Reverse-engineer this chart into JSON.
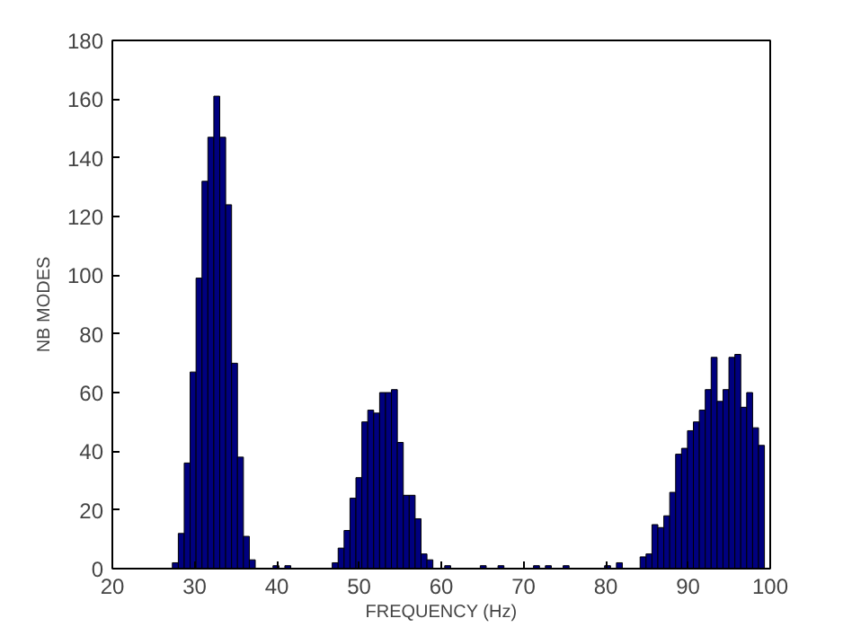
{
  "chart_data": {
    "type": "histogram",
    "xlabel": "FREQUENCY (Hz)",
    "ylabel": "NB MODES",
    "color": "#00007f",
    "bins": [
      27.3,
      28.02,
      28.74,
      29.46,
      30.18,
      30.9,
      31.62,
      32.34,
      33.06,
      33.78,
      34.5,
      35.22,
      35.94,
      36.66,
      37.38,
      38.1,
      38.82,
      39.54,
      40.26,
      40.98,
      41.7,
      42.42,
      43.14,
      43.86,
      44.58,
      45.3,
      46.02,
      46.74,
      47.46,
      48.18,
      48.9,
      49.62,
      50.34,
      51.06,
      51.78,
      52.5,
      53.22,
      53.94,
      54.66,
      55.38,
      56.1,
      56.82,
      57.54,
      58.26,
      58.98,
      59.7,
      60.42,
      61.14,
      61.86,
      62.58,
      63.3,
      64.02,
      64.74,
      65.46,
      66.18,
      66.9,
      67.62,
      68.34,
      69.06,
      69.78,
      70.5,
      71.22,
      71.94,
      72.66,
      73.38,
      74.1,
      74.82,
      75.54,
      76.26,
      76.98,
      77.7,
      78.42,
      79.14,
      79.86,
      80.58,
      81.3,
      82.02,
      82.74,
      83.46,
      84.18,
      84.9,
      85.62,
      86.34,
      87.06,
      87.78,
      88.5,
      89.22,
      89.94,
      90.66,
      91.38,
      92.1,
      92.82,
      93.54,
      94.26,
      94.98,
      95.7,
      96.42,
      97.14,
      97.86,
      98.58,
      99.3
    ],
    "values": [
      2,
      12,
      36,
      67,
      99,
      132,
      147,
      161,
      147,
      124,
      70,
      38,
      11,
      3,
      0,
      0,
      0,
      1,
      0,
      1,
      0,
      0,
      0,
      0,
      0,
      0,
      0,
      2,
      7,
      13,
      24,
      31,
      50,
      54,
      53,
      60,
      60,
      61,
      43,
      25,
      25,
      17,
      5,
      3,
      0,
      0,
      1,
      0,
      0,
      0,
      0,
      0,
      1,
      0,
      0,
      1,
      0,
      0,
      0,
      0,
      0,
      1,
      0,
      1,
      0,
      0,
      1,
      0,
      0,
      0,
      0,
      0,
      0,
      1,
      0,
      2,
      0,
      0,
      0,
      4,
      5,
      15,
      14,
      18,
      26,
      39,
      41,
      47,
      50,
      54,
      61,
      72,
      57,
      61,
      72,
      73,
      55,
      60,
      48,
      42
    ],
    "xlim": [
      20,
      100
    ],
    "xticks": [
      20,
      30,
      40,
      50,
      60,
      70,
      80,
      90,
      100
    ],
    "ylim": [
      0,
      180
    ],
    "yticks": [
      0,
      20,
      40,
      60,
      80,
      100,
      120,
      140,
      160,
      180
    ],
    "grid": false
  }
}
